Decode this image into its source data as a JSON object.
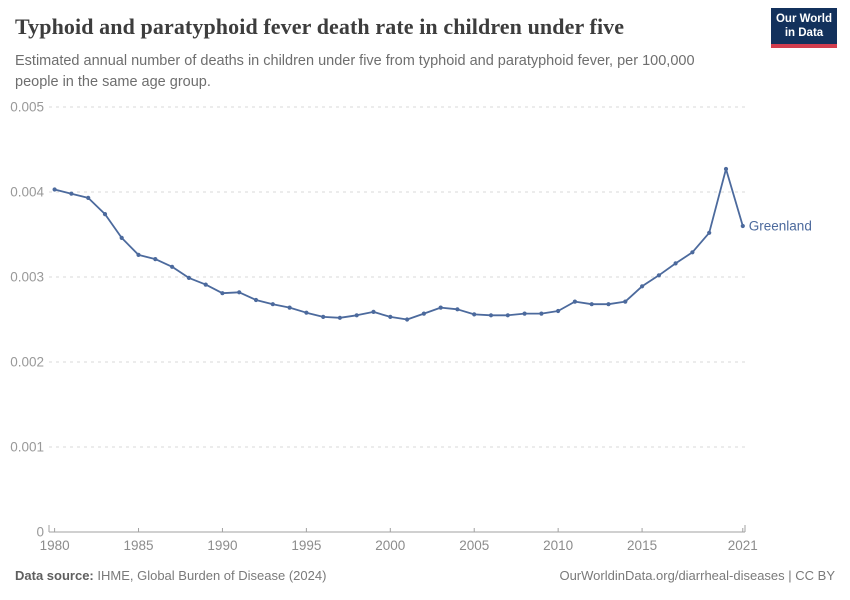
{
  "header": {
    "title": "Typhoid and paratyphoid fever death rate in children under five",
    "subtitle": "Estimated annual number of deaths in children under five from typhoid and paratyphoid fever, per 100,000 people in the same age group.",
    "logo": {
      "line1": "Our World",
      "line2": "in Data",
      "bg_color": "#13315c",
      "accent_color": "#d23d4e"
    }
  },
  "chart_data": {
    "type": "line",
    "title": "Typhoid and paratyphoid fever death rate in children under five",
    "subtitle": "Estimated annual number of deaths in children under five from typhoid and paratyphoid fever, per 100,000 people in the same age group.",
    "xlabel": "",
    "ylabel": "",
    "xlim": [
      1980,
      2021
    ],
    "ylim": [
      0,
      0.005
    ],
    "x_ticks": [
      1980,
      1985,
      1990,
      1995,
      2000,
      2005,
      2010,
      2015,
      2021
    ],
    "y_ticks": [
      0,
      0.001,
      0.002,
      0.003,
      0.004,
      0.005
    ],
    "grid": "horizontal-dashed",
    "legend_position": "end-of-line-label",
    "series": [
      {
        "name": "Greenland",
        "color": "#4c6a9d",
        "x": [
          1980,
          1981,
          1982,
          1983,
          1984,
          1985,
          1986,
          1987,
          1988,
          1989,
          1990,
          1991,
          1992,
          1993,
          1994,
          1995,
          1996,
          1997,
          1998,
          1999,
          2000,
          2001,
          2002,
          2003,
          2004,
          2005,
          2006,
          2007,
          2008,
          2009,
          2010,
          2011,
          2012,
          2013,
          2014,
          2015,
          2016,
          2017,
          2018,
          2019,
          2020,
          2021
        ],
        "values": [
          0.00403,
          0.00398,
          0.00393,
          0.00374,
          0.00346,
          0.00326,
          0.00321,
          0.00312,
          0.00299,
          0.00291,
          0.00281,
          0.00282,
          0.00273,
          0.00268,
          0.00264,
          0.00258,
          0.00253,
          0.00252,
          0.00255,
          0.00259,
          0.00253,
          0.0025,
          0.00257,
          0.00264,
          0.00262,
          0.00256,
          0.00255,
          0.00255,
          0.00257,
          0.00257,
          0.0026,
          0.00271,
          0.00268,
          0.00268,
          0.00271,
          0.00289,
          0.00302,
          0.00316,
          0.00329,
          0.00352,
          0.00427,
          0.0036
        ]
      }
    ],
    "colors": {
      "line": "#4c6a9d",
      "gridline": "#dadada",
      "axis": "#a1a1a1",
      "y_tick_label": "#999999",
      "x_tick_label": "#8c8c8c"
    }
  },
  "footer": {
    "datasource_label": "Data source:",
    "datasource_text": " IHME, Global Burden of Disease (2024)",
    "credit": "OurWorldinData.org/diarrheal-diseases | CC BY"
  }
}
